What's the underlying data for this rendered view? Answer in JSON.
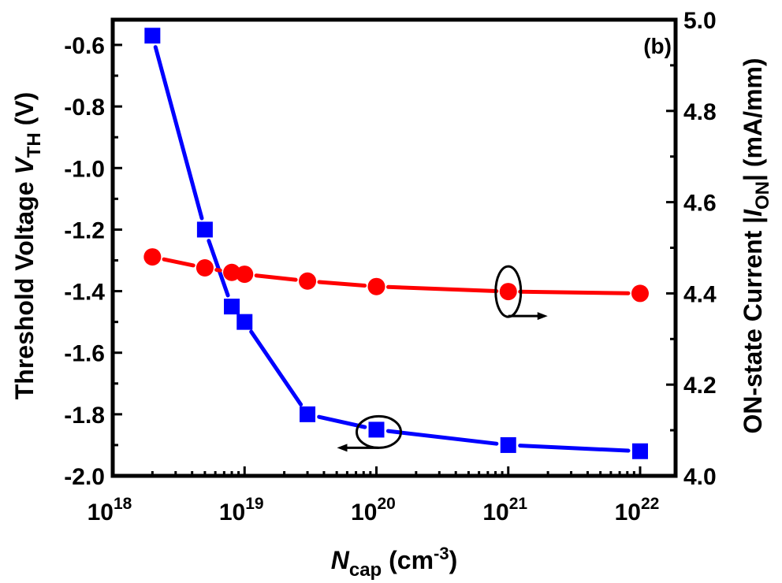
{
  "chart_data": {
    "type": "line",
    "panel_label": "(b)",
    "x": [
      2e+18,
      5e+18,
      8e+18,
      1e+19,
      3e+19,
      1e+20,
      1e+21,
      1e+22
    ],
    "xscale": "log",
    "xlim": [
      1e+18,
      1e+22
    ],
    "xlabel": {
      "main": "N",
      "sub": "cap",
      "unit_open": " (cm",
      "sup": "-3",
      "unit_close": ")"
    },
    "xticks": [
      {
        "base": "10",
        "exp": "18",
        "value": 1e+18
      },
      {
        "base": "10",
        "exp": "19",
        "value": 1e+19
      },
      {
        "base": "10",
        "exp": "20",
        "value": 1e+20
      },
      {
        "base": "10",
        "exp": "21",
        "value": 1e+21
      },
      {
        "base": "10",
        "exp": "22",
        "value": 1e+22
      }
    ],
    "y_left": {
      "label": {
        "main": "Threshold Voltage ",
        "italic": "V",
        "sub": "TH",
        "unit": " (V)"
      },
      "lim": [
        -2.0,
        -0.52
      ],
      "ticks": [
        "-0.6",
        "-0.8",
        "-1.0",
        "-1.2",
        "-1.4",
        "-1.6",
        "-1.8",
        "-2.0"
      ]
    },
    "y_right": {
      "label": {
        "main": "ON-state Current |",
        "italic": "I",
        "sub": "ON",
        "unit": "| (mA/mm)"
      },
      "lim": [
        4.0,
        5.0
      ],
      "ticks": [
        "5.0",
        "4.8",
        "4.6",
        "4.4",
        "4.2",
        "4.0"
      ]
    },
    "series": [
      {
        "name": "Threshold Voltage V_TH",
        "axis": "left",
        "marker": "square",
        "color": "#0000ff",
        "values": [
          -0.57,
          -1.2,
          -1.45,
          -1.5,
          -1.8,
          -1.85,
          -1.9,
          -1.92
        ]
      },
      {
        "name": "ON-state Current |I_ON|",
        "axis": "right",
        "marker": "circle",
        "color": "#ff0000",
        "values": [
          4.48,
          4.456,
          4.446,
          4.442,
          4.427,
          4.415,
          4.404,
          4.4
        ]
      }
    ],
    "annotations": [
      {
        "type": "ellipse-arrow",
        "target_series": "ON-state Current |I_ON|",
        "at_x": 1e+21,
        "arrow": "right"
      },
      {
        "type": "ellipse-arrow",
        "target_series": "Threshold Voltage V_TH",
        "at_x": 1e+20,
        "arrow": "left"
      }
    ],
    "grid": false,
    "legend": "none"
  }
}
